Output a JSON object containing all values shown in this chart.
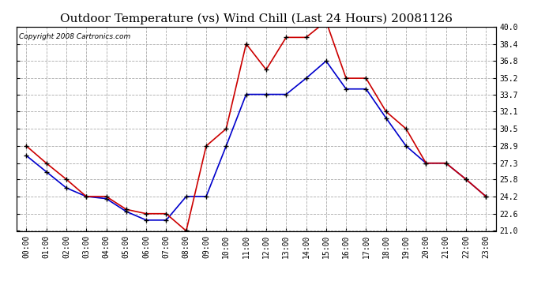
{
  "title": "Outdoor Temperature (vs) Wind Chill (Last 24 Hours) 20081126",
  "copyright": "Copyright 2008 Cartronics.com",
  "hours": [
    "00:00",
    "01:00",
    "02:00",
    "03:00",
    "04:00",
    "05:00",
    "06:00",
    "07:00",
    "08:00",
    "09:00",
    "10:00",
    "11:00",
    "12:00",
    "13:00",
    "14:00",
    "15:00",
    "16:00",
    "17:00",
    "18:00",
    "19:00",
    "20:00",
    "21:00",
    "22:00",
    "23:00"
  ],
  "temp": [
    28.0,
    26.5,
    25.0,
    24.2,
    24.0,
    22.8,
    22.0,
    22.0,
    24.2,
    24.2,
    28.9,
    33.7,
    33.7,
    33.7,
    35.2,
    36.8,
    34.2,
    34.2,
    31.5,
    28.9,
    27.3,
    27.3,
    25.8,
    24.2
  ],
  "wind_chill": [
    28.9,
    27.3,
    25.8,
    24.2,
    24.2,
    23.0,
    22.6,
    22.6,
    21.0,
    28.9,
    30.5,
    38.4,
    36.0,
    39.0,
    39.0,
    40.5,
    35.2,
    35.2,
    32.1,
    30.5,
    27.3,
    27.3,
    25.8,
    24.2
  ],
  "temp_color": "#0000cc",
  "wind_chill_color": "#cc0000",
  "marker": "+",
  "marker_color": "#000000",
  "marker_size": 5,
  "line_width": 1.2,
  "ylim": [
    21.0,
    40.0
  ],
  "yticks": [
    21.0,
    22.6,
    24.2,
    25.8,
    27.3,
    28.9,
    30.5,
    32.1,
    33.7,
    35.2,
    36.8,
    38.4,
    40.0
  ],
  "grid_color": "#aaaaaa",
  "grid_style": "--",
  "bg_color": "#ffffff",
  "plot_bg_color": "#ffffff",
  "title_fontsize": 11,
  "copyright_fontsize": 6.5,
  "tick_fontsize": 7,
  "left_label_hide": false
}
